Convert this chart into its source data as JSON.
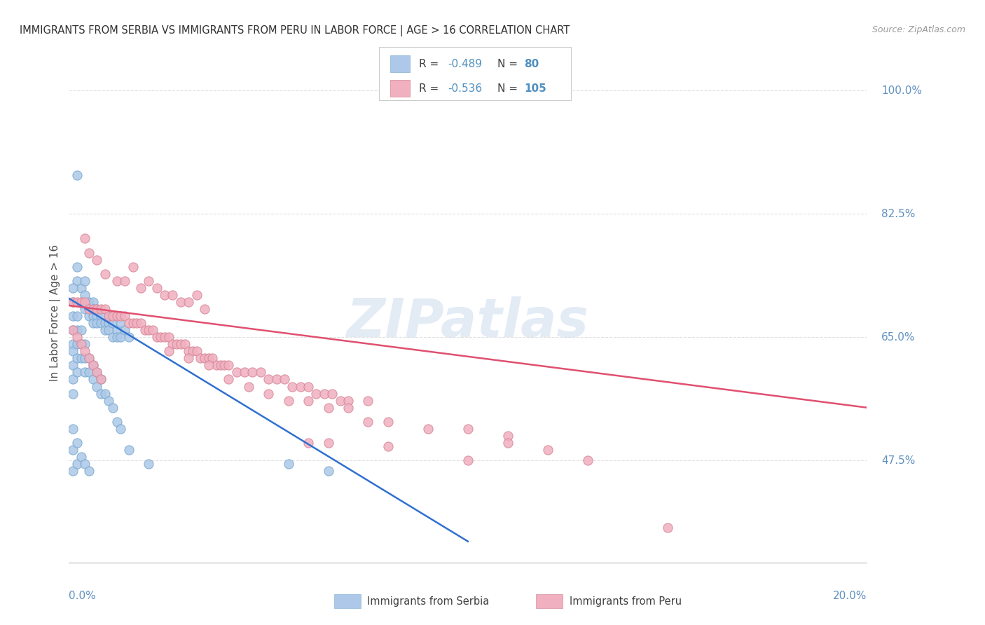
{
  "title": "IMMIGRANTS FROM SERBIA VS IMMIGRANTS FROM PERU IN LABOR FORCE | AGE > 16 CORRELATION CHART",
  "source": "Source: ZipAtlas.com",
  "ylabel": "In Labor Force | Age > 16",
  "right_yticks": [
    47.5,
    65.0,
    82.5,
    100.0
  ],
  "serbia_R": -0.489,
  "serbia_N": 80,
  "peru_R": -0.536,
  "peru_N": 105,
  "serbia_scatter": [
    [
      0.002,
      0.88
    ],
    [
      0.002,
      0.75
    ],
    [
      0.002,
      0.73
    ],
    [
      0.003,
      0.72
    ],
    [
      0.003,
      0.7
    ],
    [
      0.004,
      0.71
    ],
    [
      0.004,
      0.73
    ],
    [
      0.004,
      0.69
    ],
    [
      0.005,
      0.7
    ],
    [
      0.005,
      0.69
    ],
    [
      0.005,
      0.68
    ],
    [
      0.006,
      0.7
    ],
    [
      0.006,
      0.69
    ],
    [
      0.006,
      0.68
    ],
    [
      0.006,
      0.67
    ],
    [
      0.007,
      0.69
    ],
    [
      0.007,
      0.68
    ],
    [
      0.007,
      0.67
    ],
    [
      0.008,
      0.68
    ],
    [
      0.008,
      0.67
    ],
    [
      0.009,
      0.67
    ],
    [
      0.009,
      0.66
    ],
    [
      0.01,
      0.68
    ],
    [
      0.01,
      0.67
    ],
    [
      0.01,
      0.66
    ],
    [
      0.011,
      0.67
    ],
    [
      0.011,
      0.65
    ],
    [
      0.012,
      0.66
    ],
    [
      0.012,
      0.65
    ],
    [
      0.013,
      0.65
    ],
    [
      0.013,
      0.67
    ],
    [
      0.014,
      0.66
    ],
    [
      0.015,
      0.65
    ],
    [
      0.001,
      0.72
    ],
    [
      0.001,
      0.7
    ],
    [
      0.001,
      0.68
    ],
    [
      0.001,
      0.66
    ],
    [
      0.001,
      0.64
    ],
    [
      0.001,
      0.63
    ],
    [
      0.001,
      0.61
    ],
    [
      0.001,
      0.59
    ],
    [
      0.001,
      0.57
    ],
    [
      0.002,
      0.68
    ],
    [
      0.002,
      0.66
    ],
    [
      0.002,
      0.64
    ],
    [
      0.002,
      0.62
    ],
    [
      0.002,
      0.6
    ],
    [
      0.003,
      0.66
    ],
    [
      0.003,
      0.64
    ],
    [
      0.003,
      0.62
    ],
    [
      0.004,
      0.64
    ],
    [
      0.004,
      0.62
    ],
    [
      0.004,
      0.6
    ],
    [
      0.005,
      0.62
    ],
    [
      0.005,
      0.6
    ],
    [
      0.006,
      0.61
    ],
    [
      0.006,
      0.59
    ],
    [
      0.007,
      0.6
    ],
    [
      0.007,
      0.58
    ],
    [
      0.008,
      0.59
    ],
    [
      0.008,
      0.57
    ],
    [
      0.009,
      0.57
    ],
    [
      0.01,
      0.56
    ],
    [
      0.011,
      0.55
    ],
    [
      0.012,
      0.53
    ],
    [
      0.013,
      0.52
    ],
    [
      0.001,
      0.52
    ],
    [
      0.001,
      0.49
    ],
    [
      0.001,
      0.46
    ],
    [
      0.002,
      0.5
    ],
    [
      0.002,
      0.47
    ],
    [
      0.003,
      0.48
    ],
    [
      0.004,
      0.47
    ],
    [
      0.005,
      0.46
    ],
    [
      0.015,
      0.49
    ],
    [
      0.02,
      0.47
    ],
    [
      0.055,
      0.47
    ],
    [
      0.065,
      0.46
    ]
  ],
  "peru_scatter": [
    [
      0.004,
      0.79
    ],
    [
      0.005,
      0.77
    ],
    [
      0.007,
      0.76
    ],
    [
      0.009,
      0.74
    ],
    [
      0.012,
      0.73
    ],
    [
      0.014,
      0.73
    ],
    [
      0.016,
      0.75
    ],
    [
      0.018,
      0.72
    ],
    [
      0.02,
      0.73
    ],
    [
      0.022,
      0.72
    ],
    [
      0.024,
      0.71
    ],
    [
      0.026,
      0.71
    ],
    [
      0.028,
      0.7
    ],
    [
      0.03,
      0.7
    ],
    [
      0.032,
      0.71
    ],
    [
      0.034,
      0.69
    ],
    [
      0.001,
      0.7
    ],
    [
      0.002,
      0.7
    ],
    [
      0.003,
      0.7
    ],
    [
      0.004,
      0.7
    ],
    [
      0.005,
      0.69
    ],
    [
      0.006,
      0.69
    ],
    [
      0.007,
      0.69
    ],
    [
      0.008,
      0.69
    ],
    [
      0.009,
      0.69
    ],
    [
      0.01,
      0.68
    ],
    [
      0.011,
      0.68
    ],
    [
      0.012,
      0.68
    ],
    [
      0.013,
      0.68
    ],
    [
      0.014,
      0.68
    ],
    [
      0.015,
      0.67
    ],
    [
      0.016,
      0.67
    ],
    [
      0.017,
      0.67
    ],
    [
      0.018,
      0.67
    ],
    [
      0.019,
      0.66
    ],
    [
      0.02,
      0.66
    ],
    [
      0.021,
      0.66
    ],
    [
      0.022,
      0.65
    ],
    [
      0.023,
      0.65
    ],
    [
      0.024,
      0.65
    ],
    [
      0.025,
      0.65
    ],
    [
      0.026,
      0.64
    ],
    [
      0.027,
      0.64
    ],
    [
      0.028,
      0.64
    ],
    [
      0.029,
      0.64
    ],
    [
      0.03,
      0.63
    ],
    [
      0.031,
      0.63
    ],
    [
      0.032,
      0.63
    ],
    [
      0.033,
      0.62
    ],
    [
      0.034,
      0.62
    ],
    [
      0.035,
      0.62
    ],
    [
      0.036,
      0.62
    ],
    [
      0.037,
      0.61
    ],
    [
      0.038,
      0.61
    ],
    [
      0.039,
      0.61
    ],
    [
      0.04,
      0.61
    ],
    [
      0.042,
      0.6
    ],
    [
      0.044,
      0.6
    ],
    [
      0.046,
      0.6
    ],
    [
      0.048,
      0.6
    ],
    [
      0.05,
      0.59
    ],
    [
      0.052,
      0.59
    ],
    [
      0.054,
      0.59
    ],
    [
      0.056,
      0.58
    ],
    [
      0.058,
      0.58
    ],
    [
      0.06,
      0.58
    ],
    [
      0.062,
      0.57
    ],
    [
      0.064,
      0.57
    ],
    [
      0.066,
      0.57
    ],
    [
      0.068,
      0.56
    ],
    [
      0.07,
      0.56
    ],
    [
      0.075,
      0.56
    ],
    [
      0.025,
      0.63
    ],
    [
      0.03,
      0.62
    ],
    [
      0.035,
      0.61
    ],
    [
      0.04,
      0.59
    ],
    [
      0.045,
      0.58
    ],
    [
      0.05,
      0.57
    ],
    [
      0.055,
      0.56
    ],
    [
      0.06,
      0.56
    ],
    [
      0.065,
      0.55
    ],
    [
      0.07,
      0.55
    ],
    [
      0.001,
      0.66
    ],
    [
      0.002,
      0.65
    ],
    [
      0.003,
      0.64
    ],
    [
      0.004,
      0.63
    ],
    [
      0.005,
      0.62
    ],
    [
      0.006,
      0.61
    ],
    [
      0.007,
      0.6
    ],
    [
      0.008,
      0.59
    ],
    [
      0.075,
      0.53
    ],
    [
      0.08,
      0.53
    ],
    [
      0.09,
      0.52
    ],
    [
      0.1,
      0.52
    ],
    [
      0.11,
      0.51
    ],
    [
      0.11,
      0.5
    ],
    [
      0.12,
      0.49
    ],
    [
      0.13,
      0.475
    ],
    [
      0.06,
      0.5
    ],
    [
      0.065,
      0.5
    ],
    [
      0.08,
      0.495
    ],
    [
      0.1,
      0.475
    ],
    [
      0.15,
      0.38
    ]
  ],
  "serbia_line": {
    "x0": 0.0,
    "y0": 0.705,
    "x1": 0.1,
    "y1": 0.36
  },
  "peru_line": {
    "x0": 0.0,
    "y0": 0.695,
    "x1": 0.2,
    "y1": 0.55
  },
  "xmin": 0.0,
  "xmax": 0.2,
  "ymin": 0.33,
  "ymax": 1.04,
  "watermark": "ZIPatlas",
  "background_color": "#ffffff",
  "grid_color": "#e0e0e0",
  "scatter_serbia_color": "#adc8e8",
  "scatter_serbia_edge": "#7aaad0",
  "scatter_peru_color": "#f0b0c0",
  "scatter_peru_edge": "#d88898",
  "line_serbia_color": "#3070d0",
  "line_peru_color": "#e05070",
  "title_color": "#303030",
  "axis_label_color": "#6090c0",
  "legend_text_color": "#5090c0",
  "legend_rn_color": "#5090c0"
}
